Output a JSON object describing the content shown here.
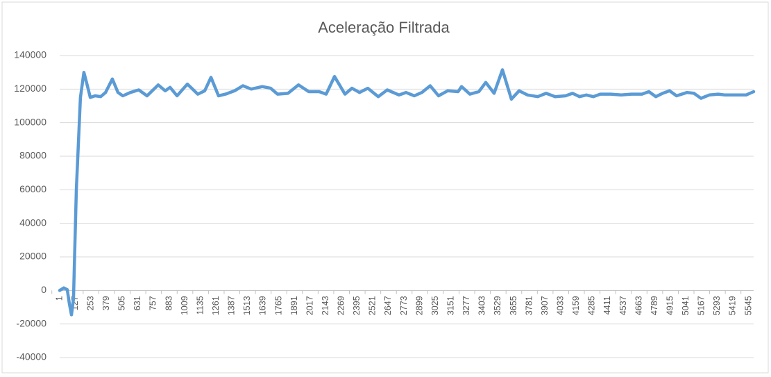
{
  "chart_data": {
    "type": "line",
    "title": "Aceleração Filtrada",
    "x": [
      1,
      34,
      62,
      79,
      96,
      112,
      135,
      168,
      196,
      224,
      247,
      286,
      331,
      370,
      425,
      470,
      509,
      570,
      637,
      704,
      794,
      850,
      889,
      945,
      1028,
      1112,
      1168,
      1218,
      1279,
      1335,
      1408,
      1475,
      1542,
      1631,
      1698,
      1754,
      1838,
      1922,
      2005,
      2089,
      2145,
      2212,
      2296,
      2352,
      2413,
      2480,
      2564,
      2636,
      2731,
      2787,
      2854,
      2915,
      2982,
      3049,
      3122,
      3206,
      3234,
      3301,
      3373,
      3429,
      3496,
      3563,
      3635,
      3697,
      3764,
      3847,
      3914,
      3987,
      4071,
      4127,
      4183,
      4238,
      4294,
      4350,
      4434,
      4518,
      4601,
      4685,
      4741,
      4797,
      4852,
      4908,
      4964,
      5048,
      5104,
      5160,
      5227,
      5299,
      5355,
      5439,
      5523,
      5584
    ],
    "series": [
      {
        "color": "#5b9bd5",
        "values": [
          0,
          1500,
          500,
          -8000,
          -14500,
          -5000,
          60000,
          115000,
          130000,
          122000,
          115000,
          116000,
          115500,
          118000,
          126000,
          118000,
          116000,
          118000,
          119500,
          116000,
          122500,
          119000,
          121000,
          116000,
          123000,
          117000,
          119000,
          127000,
          116000,
          117000,
          119000,
          122000,
          120000,
          121500,
          120500,
          117000,
          117500,
          122500,
          118500,
          118500,
          117000,
          127500,
          117000,
          120500,
          118000,
          120500,
          115500,
          119500,
          116500,
          118000,
          116000,
          118000,
          122000,
          116000,
          119000,
          118500,
          121500,
          117000,
          118500,
          124000,
          117500,
          131500,
          114000,
          119000,
          116500,
          115500,
          117500,
          115500,
          116000,
          117500,
          115500,
          116500,
          115500,
          117000,
          117000,
          116500,
          117000,
          117000,
          118500,
          115500,
          117500,
          119000,
          116000,
          118000,
          117500,
          114500,
          116500,
          117000,
          116500,
          116500,
          116500,
          118500
        ]
      }
    ],
    "xlim": [
      1,
      5584
    ],
    "xticks": [
      1,
      127,
      253,
      379,
      505,
      631,
      757,
      883,
      1009,
      1135,
      1261,
      1387,
      1513,
      1639,
      1765,
      1891,
      2017,
      2143,
      2269,
      2395,
      2521,
      2647,
      2773,
      2899,
      3025,
      3151,
      3277,
      3403,
      3529,
      3655,
      3781,
      3907,
      4033,
      4159,
      4285,
      4411,
      4537,
      4663,
      4789,
      4915,
      5041,
      5167,
      5293,
      5419,
      5545
    ],
    "ylim": [
      -40000,
      140000
    ],
    "yticks": [
      -40000,
      -20000,
      0,
      20000,
      40000,
      60000,
      80000,
      100000,
      120000,
      140000
    ],
    "grid": true
  }
}
